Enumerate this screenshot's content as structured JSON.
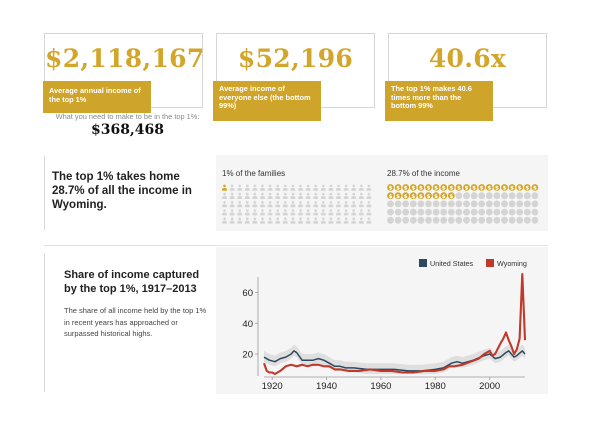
{
  "stats": [
    {
      "value": "$2,118,167",
      "label": "Average annual income of the top 1%"
    },
    {
      "value": "$52,196",
      "label": "Average income of everyone else (the bottom 99%)"
    },
    {
      "value": "40.6x",
      "label": "The top 1% makes 40.6 times more than the bottom 99%"
    }
  ],
  "threshold": {
    "label": "What you need to make to be in the top 1%:",
    "value": "$368,468"
  },
  "share_section": {
    "headline": "The top 1% takes home 28.7% of all the income in Wyoming.",
    "families_label": "1% of the families",
    "income_label": "28.7% of the income",
    "families_total": 100,
    "families_highlighted": 1,
    "income_total": 100,
    "income_highlighted": 29,
    "colors": {
      "highlight": "#d3a62a",
      "muted": "#d4d4d4"
    },
    "icons": {
      "family": "person-icon",
      "income": "dollar-coin-icon"
    }
  },
  "history_section": {
    "title": "Share of income captured by the top 1%, 1917–2013",
    "description": "The share of all income held by the top 1% in recent years has approached or surpassed historical highs."
  },
  "chart_data": {
    "type": "line",
    "title": "",
    "xlabel": "",
    "ylabel": "",
    "xlim": [
      1917,
      2013
    ],
    "ylim": [
      7,
      74
    ],
    "x_ticks": [
      1920,
      1940,
      1960,
      1980,
      2000
    ],
    "y_ticks": [
      20,
      40,
      60
    ],
    "legend_position": "top-right",
    "grid": false,
    "series": [
      {
        "name": "United States",
        "color": "#2b4a5e",
        "points": [
          [
            1917,
            18
          ],
          [
            1919,
            16
          ],
          [
            1921,
            15
          ],
          [
            1923,
            17
          ],
          [
            1925,
            18
          ],
          [
            1927,
            20
          ],
          [
            1928,
            22
          ],
          [
            1929,
            21
          ],
          [
            1931,
            16
          ],
          [
            1933,
            16
          ],
          [
            1935,
            16
          ],
          [
            1937,
            17
          ],
          [
            1939,
            16
          ],
          [
            1941,
            14
          ],
          [
            1943,
            12
          ],
          [
            1945,
            12
          ],
          [
            1947,
            11
          ],
          [
            1950,
            11
          ],
          [
            1955,
            10
          ],
          [
            1960,
            10
          ],
          [
            1965,
            10
          ],
          [
            1970,
            9
          ],
          [
            1975,
            9
          ],
          [
            1980,
            10
          ],
          [
            1983,
            11
          ],
          [
            1986,
            14
          ],
          [
            1988,
            15
          ],
          [
            1990,
            14
          ],
          [
            1994,
            16
          ],
          [
            1998,
            19
          ],
          [
            2000,
            20
          ],
          [
            2002,
            17
          ],
          [
            2004,
            18
          ],
          [
            2006,
            21
          ],
          [
            2007,
            22
          ],
          [
            2008,
            20
          ],
          [
            2009,
            18
          ],
          [
            2010,
            19
          ],
          [
            2012,
            22
          ],
          [
            2013,
            20
          ]
        ]
      },
      {
        "name": "Wyoming",
        "color": "#c0392b",
        "points": [
          [
            1917,
            14
          ],
          [
            1918,
            9
          ],
          [
            1919,
            8
          ],
          [
            1920,
            8
          ],
          [
            1921,
            7
          ],
          [
            1923,
            9
          ],
          [
            1925,
            12
          ],
          [
            1927,
            13
          ],
          [
            1929,
            12
          ],
          [
            1931,
            13
          ],
          [
            1933,
            12
          ],
          [
            1935,
            13
          ],
          [
            1937,
            13
          ],
          [
            1939,
            12
          ],
          [
            1941,
            12
          ],
          [
            1943,
            10
          ],
          [
            1945,
            10
          ],
          [
            1948,
            9
          ],
          [
            1952,
            9
          ],
          [
            1956,
            10
          ],
          [
            1960,
            9
          ],
          [
            1964,
            9
          ],
          [
            1968,
            8
          ],
          [
            1972,
            8
          ],
          [
            1976,
            9
          ],
          [
            1979,
            9
          ],
          [
            1980,
            9
          ],
          [
            1983,
            10
          ],
          [
            1985,
            12
          ],
          [
            1987,
            12
          ],
          [
            1990,
            13
          ],
          [
            1993,
            15
          ],
          [
            1996,
            17
          ],
          [
            1998,
            20
          ],
          [
            2000,
            22
          ],
          [
            2001,
            19
          ],
          [
            2002,
            20
          ],
          [
            2004,
            27
          ],
          [
            2005,
            30
          ],
          [
            2006,
            34
          ],
          [
            2007,
            29
          ],
          [
            2008,
            25
          ],
          [
            2009,
            20
          ],
          [
            2010,
            23
          ],
          [
            2011,
            30
          ],
          [
            2012,
            72
          ],
          [
            2013,
            29
          ]
        ]
      }
    ]
  }
}
